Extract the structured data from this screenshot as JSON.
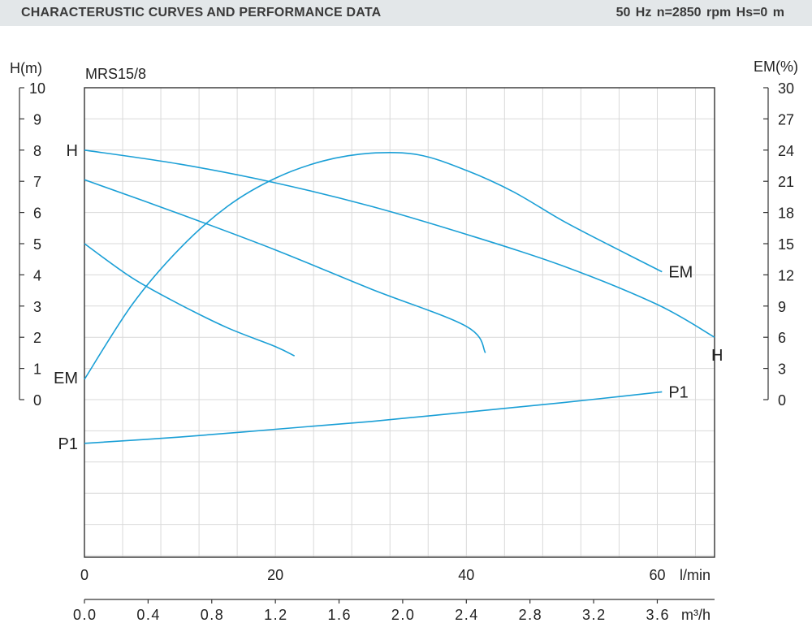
{
  "header": {
    "title": "CHARACTERUSTIC CURVES AND PERFORMANCE DATA",
    "params": "50 Hz   n=2850   rpm   Hs=0 m"
  },
  "colors": {
    "curve": "#1a9fd6",
    "grid": "#d9d9d9",
    "axis": "#333333",
    "banner": "#e3e7e9"
  },
  "chart_data": {
    "type": "line",
    "model_label": "MRS15/8",
    "left_axis": {
      "label": "H(m)",
      "ticks": [
        "0",
        "1",
        "2",
        "3",
        "4",
        "5",
        "6",
        "7",
        "8",
        "9",
        "10"
      ],
      "range": [
        0,
        10
      ]
    },
    "right_axis": {
      "label": "EM(%)",
      "ticks": [
        "0",
        "3",
        "6",
        "9",
        "12",
        "15",
        "18",
        "21",
        "24",
        "27",
        "30"
      ],
      "range": [
        0,
        30
      ]
    },
    "x_axis_lpm": {
      "label": "l/min",
      "ticks": [
        "0",
        "20",
        "40",
        "60"
      ],
      "range": [
        0,
        66
      ]
    },
    "x_axis_m3h": {
      "label": "m³/h",
      "ticks": [
        "0.0",
        "0.4",
        "0.8",
        "1.2",
        "1.6",
        "2.0",
        "2.4",
        "2.8",
        "3.2",
        "3.6"
      ],
      "range": [
        0,
        3.96
      ]
    },
    "grid": true,
    "curve_labels": [
      {
        "text": "H",
        "x": 0,
        "y": 8.0,
        "side": "left"
      },
      {
        "text": "H",
        "x": 66,
        "y": 2.0,
        "side": "end"
      },
      {
        "text": "EM",
        "x": 0,
        "y": 0.7,
        "side": "left"
      },
      {
        "text": "EM",
        "x": 60.5,
        "y": 4.1,
        "side": "right"
      },
      {
        "text": "P1",
        "x": 0,
        "y": -1.4,
        "side": "left"
      },
      {
        "text": "P1",
        "x": 60.5,
        "y": 0.25,
        "side": "right"
      }
    ],
    "series": [
      {
        "points": [
          [
            0,
            8.0
          ],
          [
            10,
            7.55
          ],
          [
            20,
            6.95
          ],
          [
            30,
            6.2
          ],
          [
            40,
            5.3
          ],
          [
            50,
            4.3
          ],
          [
            60,
            3.05
          ],
          [
            66,
            2.0
          ]
        ]
      },
      {
        "points": [
          [
            0,
            7.05
          ],
          [
            10,
            5.95
          ],
          [
            20,
            4.8
          ],
          [
            30,
            3.55
          ],
          [
            40,
            2.35
          ],
          [
            42,
            1.5
          ]
        ]
      },
      {
        "points": [
          [
            0,
            5.0
          ],
          [
            5,
            3.9
          ],
          [
            10,
            3.05
          ],
          [
            15,
            2.3
          ],
          [
            20,
            1.7
          ],
          [
            22,
            1.4
          ]
        ]
      },
      {
        "points": [
          [
            0,
            0.65
          ],
          [
            5,
            3.05
          ],
          [
            10,
            4.85
          ],
          [
            15,
            6.2
          ],
          [
            20,
            7.1
          ],
          [
            25,
            7.65
          ],
          [
            30,
            7.9
          ],
          [
            35,
            7.85
          ],
          [
            40,
            7.35
          ],
          [
            45,
            6.65
          ],
          [
            50,
            5.75
          ],
          [
            55,
            4.95
          ],
          [
            60.5,
            4.1
          ]
        ]
      },
      {
        "points": [
          [
            0,
            -1.4
          ],
          [
            10,
            -1.2
          ],
          [
            20,
            -0.95
          ],
          [
            30,
            -0.7
          ],
          [
            40,
            -0.4
          ],
          [
            50,
            -0.1
          ],
          [
            60.5,
            0.25
          ]
        ]
      }
    ]
  }
}
